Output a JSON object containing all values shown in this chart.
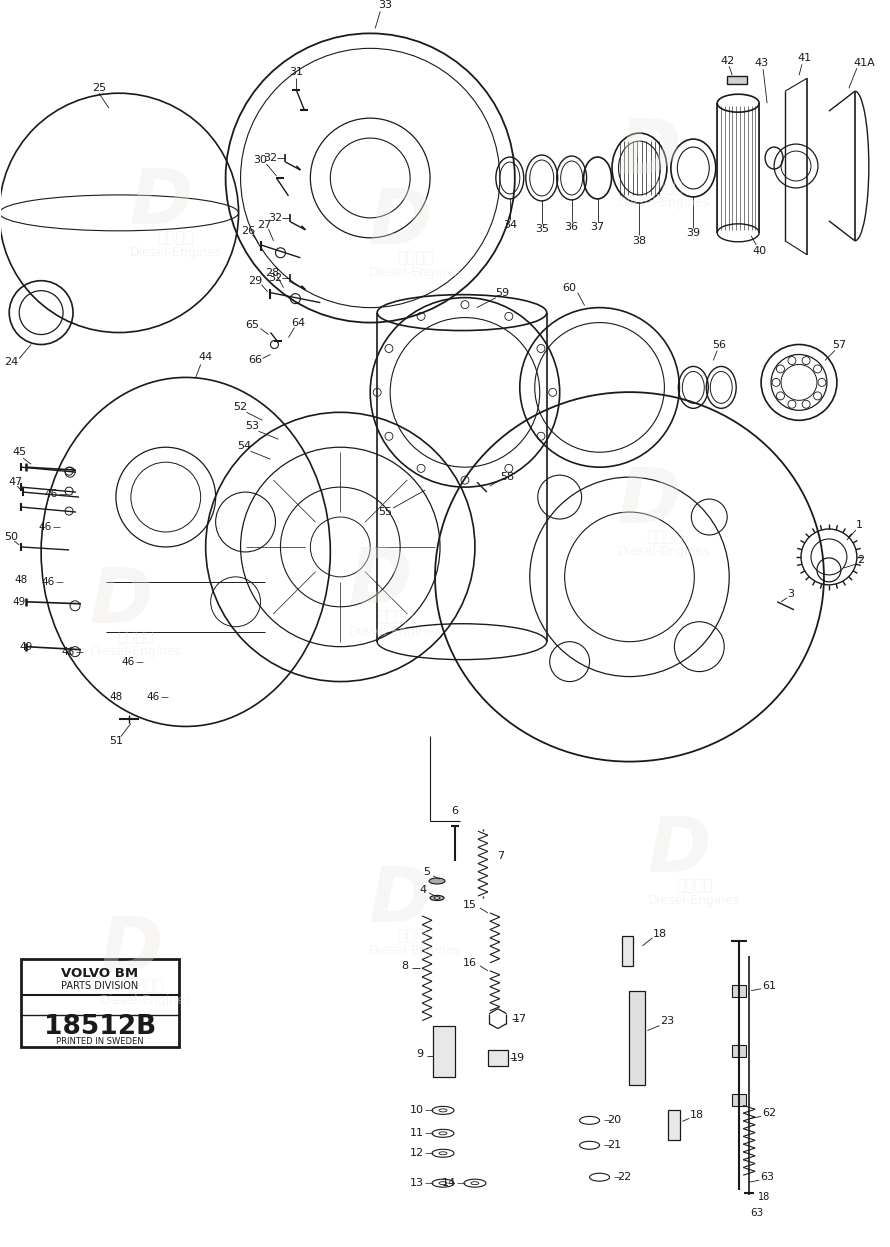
{
  "background_color": "#ffffff",
  "line_color": "#1a1a1a",
  "text_color": "#1a1a1a",
  "box_line1": "VOLVO BM",
  "box_line2": "PARTS DIVISION",
  "box_line3": "18512B",
  "box_line4": "PRINTED IN SWEDEN",
  "wm_color": "#ede8e0",
  "wm_alpha": 0.35
}
